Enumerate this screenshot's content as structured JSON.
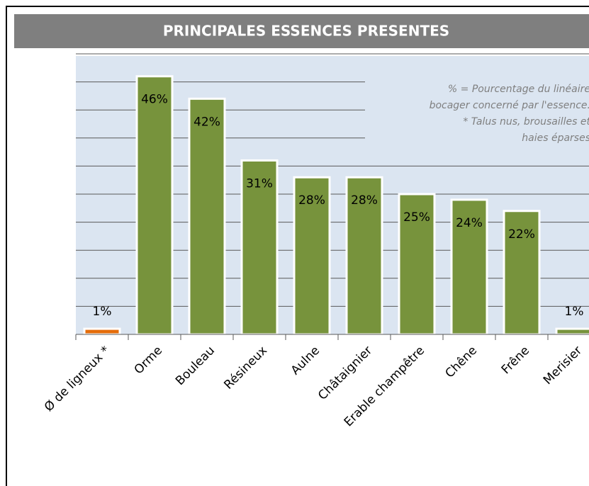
{
  "chart_data": {
    "type": "bar",
    "title": "PRINCIPALES ESSENCES PRESENTES",
    "annotation": [
      "% = Pourcentage du linéaire",
      "bocager concerné par l'essence.",
      "* Talus nus, brousailles et",
      "haies éparses"
    ],
    "categories": [
      "Ø de ligneux *",
      "Orme",
      "Bouleau",
      "Résineux",
      "Aulne",
      "Châtaignier",
      "Erable champêtre",
      "Chêne",
      "Frêne",
      "Merisier"
    ],
    "values": [
      1,
      46,
      42,
      31,
      28,
      28,
      25,
      24,
      22,
      1
    ],
    "value_labels": [
      "1%",
      "46%",
      "42%",
      "31%",
      "28%",
      "28%",
      "25%",
      "24%",
      "22%",
      "1%"
    ],
    "colors": [
      "#e46c0a",
      "#77933c",
      "#77933c",
      "#77933c",
      "#77933c",
      "#77933c",
      "#77933c",
      "#77933c",
      "#77933c",
      "#77933c"
    ],
    "ylim": [
      0,
      50
    ],
    "yticks": [
      0,
      5,
      10,
      15,
      20,
      25,
      30,
      35,
      40,
      45,
      50
    ],
    "grid": true
  }
}
